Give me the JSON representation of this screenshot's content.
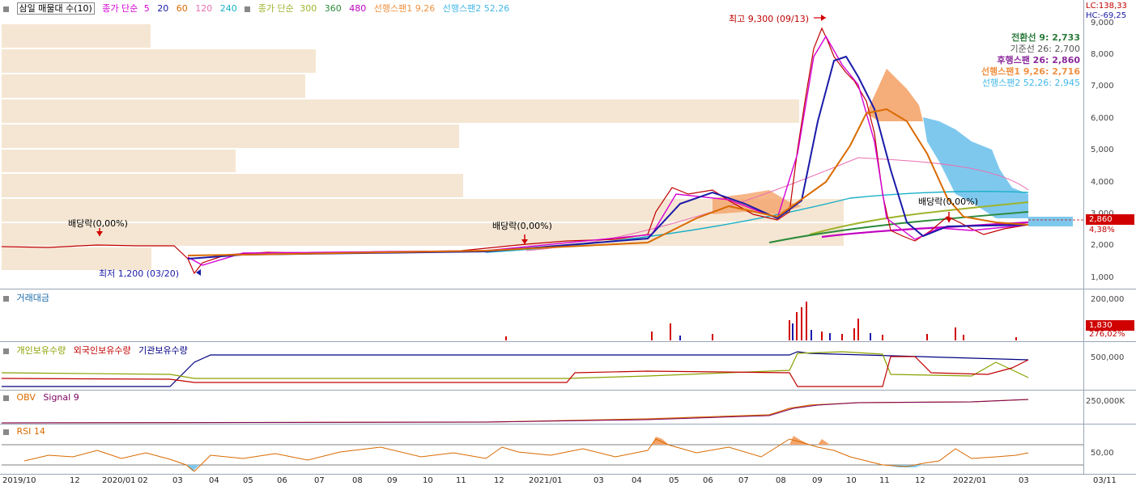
{
  "main_legend": {
    "title": "삼일 매물대 수(10)",
    "ma_label": "종가 단순",
    "ma_periods": [
      "5",
      "20",
      "60",
      "120",
      "240"
    ],
    "ma_colors": [
      "#d400d4",
      "#1a1aa8",
      "#d96a00",
      "#e870b0",
      "#19b0c8"
    ],
    "long_ma_label": "종가 단순",
    "long_ma_periods": [
      "300",
      "360",
      "480"
    ],
    "long_ma_colors": [
      "#9fb32a",
      "#2a8a3a",
      "#c000c0"
    ],
    "span1": "선행스팬1 9,26",
    "span2": "선행스팬2 52,26"
  },
  "ichimoku": {
    "conv": "전환선 9: 2,733",
    "base": "기준선 26: 2,700",
    "lag": "후행스팬 26: 2,860",
    "s1": "선행스팬1 9,26: 2,716",
    "s2": "선행스팬2 52,26: 2,945"
  },
  "annotations": {
    "high": "최고 9,300 (09/13)",
    "low": "최저 1,200 (03/20)",
    "div1": "배당락(0,00%)",
    "div2": "배당락(0,00%)",
    "div3": "배당락(0,00%)"
  },
  "price_axis": {
    "lc": "LC:138,33",
    "hc": "HC:-69,25",
    "ticks": [
      "9,000",
      "8,000",
      "7,000",
      "6,000",
      "5,000",
      "4,000",
      "3,000",
      "2,000",
      "1,000"
    ],
    "current": "2,860",
    "pct": "4,38%"
  },
  "volume": {
    "title": "거래대금",
    "tick": "200,000",
    "current": "1,830",
    "pct": "276,02%"
  },
  "holdings": {
    "series": [
      "개인보유수량",
      "외국인보유수량",
      "기관보유수량"
    ],
    "colors": [
      "#8ca000",
      "#c00000",
      "#000080"
    ],
    "tick": "500,000"
  },
  "obv": {
    "series": [
      "OBV",
      "Signal 9"
    ],
    "colors": [
      "#d96a00",
      "#7a0060"
    ],
    "tick": "250,000K"
  },
  "rsi": {
    "title": "RSI 14",
    "tick": "50,00"
  },
  "x_axis": {
    "labels": [
      "2019/10",
      "12",
      "2020/01",
      "02",
      "03",
      "04",
      "05",
      "06",
      "07",
      "08",
      "09",
      "10",
      "11",
      "12",
      "2021/01",
      "03",
      "04",
      "05",
      "06",
      "07",
      "08",
      "09",
      "10",
      "11",
      "12",
      "2022/01",
      "03"
    ],
    "right_label": "03/11"
  }
}
